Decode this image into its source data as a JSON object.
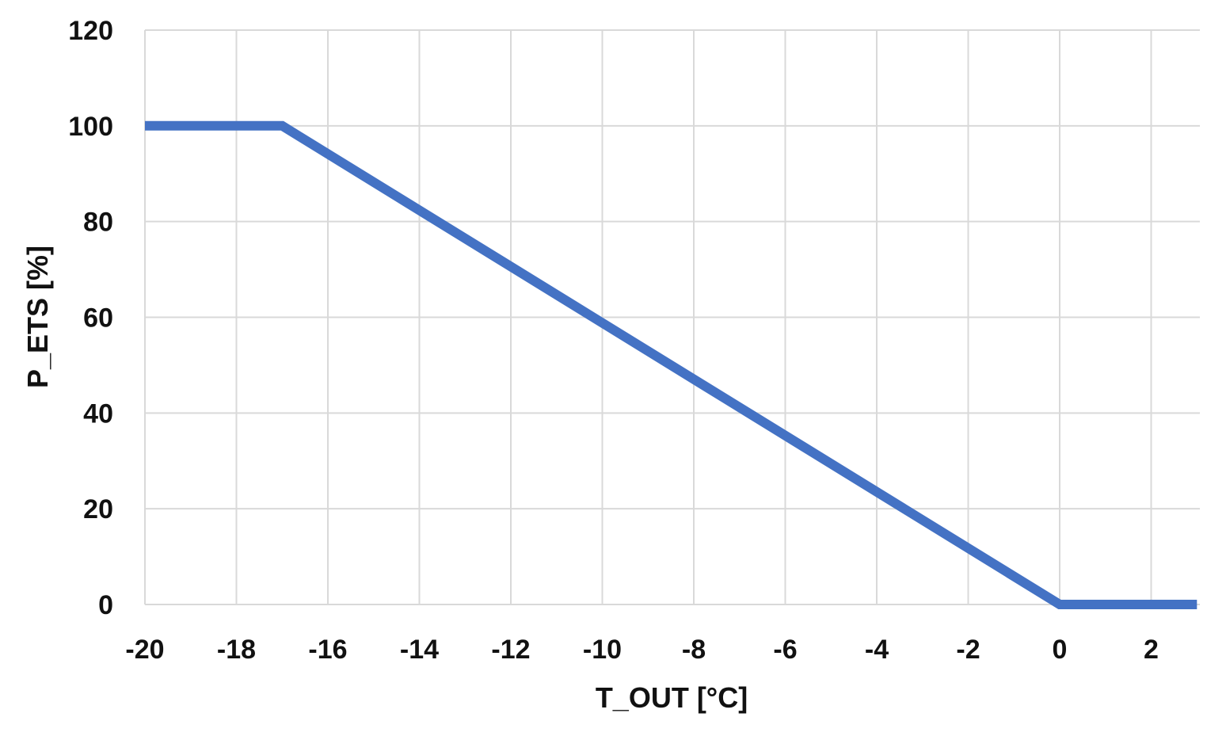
{
  "chart_data": {
    "type": "line",
    "title": "",
    "xlabel": "T_OUT [°C]",
    "ylabel": "P_ETS [%]",
    "xlim": [
      -20,
      3
    ],
    "ylim": [
      0,
      120
    ],
    "xticks": [
      -20,
      -18,
      -16,
      -14,
      -12,
      -10,
      -8,
      -6,
      -4,
      -2,
      0,
      2
    ],
    "yticks": [
      0,
      20,
      40,
      60,
      80,
      100,
      120
    ],
    "grid": true,
    "legend": "none",
    "series": [
      {
        "color": "#4472C4",
        "x": [
          -20,
          -17,
          0,
          3
        ],
        "y": [
          100,
          100,
          0,
          0
        ]
      }
    ]
  }
}
